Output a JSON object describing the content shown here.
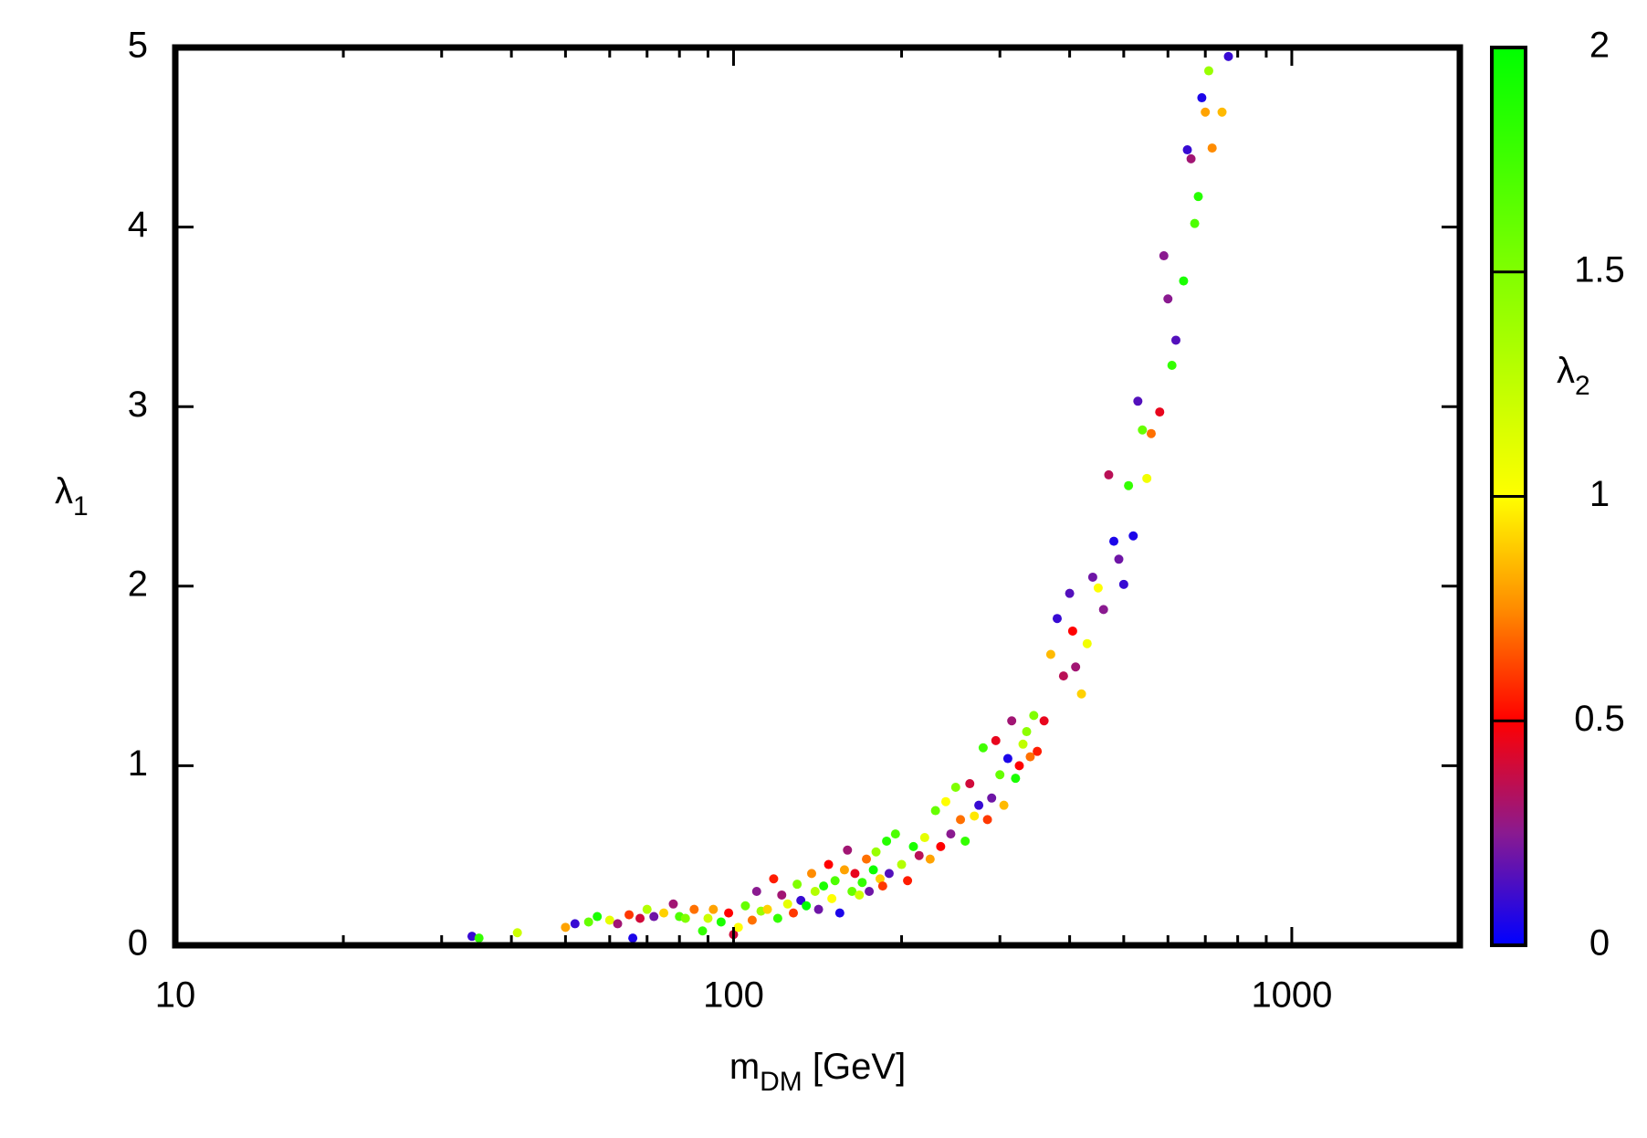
{
  "chart_data": {
    "type": "scatter",
    "xlabel": {
      "main": "m",
      "sub": "DM",
      "rest": " [GeV]"
    },
    "ylabel": {
      "main": "λ",
      "sub": "1"
    },
    "clabel": {
      "main": "λ",
      "sub": "2"
    },
    "xscale": "log",
    "xlim": [
      10,
      2000
    ],
    "xticks": [
      10,
      100,
      1000
    ],
    "minor_xticks": [
      20,
      30,
      40,
      50,
      60,
      70,
      80,
      90,
      200,
      300,
      400,
      500,
      600,
      700,
      800,
      900,
      2000
    ],
    "ylim": [
      0,
      5
    ],
    "yticks": [
      0,
      1,
      2,
      3,
      4,
      5
    ],
    "clim": [
      0,
      2
    ],
    "cticks": [
      0,
      0.5,
      1,
      1.5,
      2
    ],
    "colorscale": [
      {
        "value": 0,
        "color": "#0000ff"
      },
      {
        "value": 0.25,
        "color": "#8a1a90"
      },
      {
        "value": 0.5,
        "color": "#ff0000"
      },
      {
        "value": 0.75,
        "color": "#ff8c00"
      },
      {
        "value": 1,
        "color": "#ffff00"
      },
      {
        "value": 1.5,
        "color": "#80ff00"
      },
      {
        "value": 2,
        "color": "#00ff00"
      }
    ],
    "series": [
      {
        "x": [
          34,
          35,
          41,
          50,
          52,
          55,
          57,
          60,
          62,
          65,
          66,
          68,
          70,
          72,
          75,
          78,
          80,
          82,
          85,
          88,
          90,
          92,
          95,
          98,
          100,
          102,
          105,
          108,
          110,
          112,
          115,
          118,
          120,
          122,
          125,
          128,
          130,
          132,
          135,
          138,
          140,
          142,
          145,
          148,
          150,
          152,
          155,
          158,
          160,
          163,
          165,
          168,
          170,
          173,
          175,
          178,
          180,
          183,
          185,
          188,
          190,
          195,
          200,
          205,
          210,
          215,
          220,
          225,
          230,
          235,
          240,
          245,
          250,
          255,
          260,
          265,
          270,
          275,
          280,
          285,
          290,
          295,
          300,
          305,
          310,
          315,
          320,
          325,
          330,
          335,
          340,
          345,
          350,
          360,
          370,
          380,
          390,
          400,
          405,
          410,
          420,
          430,
          440,
          450,
          460,
          470,
          480,
          490,
          500,
          510,
          520,
          530,
          540,
          550,
          560,
          580,
          590,
          600,
          610,
          620,
          640,
          650,
          660,
          670,
          680,
          690,
          700,
          710,
          720,
          750,
          770
        ],
        "values": [
          0.05,
          0.04,
          0.07,
          0.1,
          0.12,
          0.13,
          0.16,
          0.14,
          0.12,
          0.17,
          0.04,
          0.15,
          0.2,
          0.16,
          0.18,
          0.23,
          0.16,
          0.15,
          0.2,
          0.08,
          0.15,
          0.2,
          0.13,
          0.18,
          0.06,
          0.1,
          0.22,
          0.14,
          0.3,
          0.19,
          0.2,
          0.37,
          0.15,
          0.28,
          0.23,
          0.18,
          0.34,
          0.25,
          0.22,
          0.4,
          0.3,
          0.2,
          0.33,
          0.45,
          0.26,
          0.36,
          0.18,
          0.42,
          0.53,
          0.3,
          0.4,
          0.28,
          0.35,
          0.48,
          0.3,
          0.42,
          0.52,
          0.37,
          0.33,
          0.58,
          0.4,
          0.62,
          0.45,
          0.36,
          0.55,
          0.5,
          0.6,
          0.48,
          0.75,
          0.55,
          0.8,
          0.62,
          0.88,
          0.7,
          0.58,
          0.9,
          0.72,
          0.78,
          1.1,
          0.7,
          0.82,
          1.14,
          0.95,
          0.78,
          1.04,
          1.25,
          0.93,
          1.0,
          1.12,
          1.19,
          1.05,
          1.28,
          1.08,
          1.25,
          1.62,
          1.82,
          1.5,
          1.96,
          1.75,
          1.55,
          1.4,
          1.68,
          2.05,
          1.99,
          1.87,
          2.62,
          2.25,
          2.15,
          2.01,
          2.56,
          2.28,
          3.03,
          2.87,
          2.6,
          2.85,
          2.97,
          3.84,
          3.6,
          3.23,
          3.37,
          3.7,
          4.43,
          4.38,
          4.02,
          4.17,
          4.72,
          4.64,
          4.87,
          4.44,
          4.64,
          4.95
        ],
        "c": [
          0.1,
          1.8,
          1.2,
          0.8,
          0.1,
          1.6,
          1.9,
          1.1,
          0.3,
          0.6,
          0.05,
          0.4,
          1.3,
          0.2,
          0.9,
          0.3,
          1.7,
          1.5,
          0.7,
          1.8,
          1.2,
          0.8,
          1.9,
          0.5,
          0.4,
          1.0,
          1.6,
          0.7,
          0.25,
          1.4,
          0.9,
          0.55,
          1.8,
          0.3,
          1.1,
          0.6,
          1.5,
          0.1,
          2.0,
          0.75,
          1.3,
          0.2,
          1.9,
          0.5,
          1.0,
          1.7,
          0.05,
          0.8,
          0.3,
          1.6,
          0.45,
          1.2,
          1.8,
          0.7,
          0.2,
          1.95,
          1.4,
          0.9,
          0.6,
          1.85,
          0.15,
          1.7,
          1.3,
          0.55,
          1.9,
          0.35,
          1.1,
          0.8,
          1.6,
          0.5,
          1.0,
          0.25,
          1.5,
          0.7,
          1.8,
          0.4,
          0.95,
          0.1,
          1.75,
          0.6,
          0.2,
          0.45,
          1.6,
          0.85,
          0.05,
          0.3,
          1.9,
          0.5,
          1.25,
          1.45,
          0.7,
          1.5,
          0.55,
          0.45,
          0.85,
          0.1,
          0.35,
          0.15,
          0.5,
          0.3,
          0.9,
          1.05,
          0.2,
          1.0,
          0.25,
          0.35,
          0.05,
          0.2,
          0.1,
          1.8,
          0.05,
          0.15,
          1.6,
          1.05,
          0.7,
          0.45,
          0.25,
          0.25,
          1.8,
          0.15,
          1.9,
          0.1,
          0.3,
          1.7,
          1.85,
          0.05,
          0.8,
          1.4,
          0.75,
          0.85,
          0.1
        ]
      }
    ]
  }
}
